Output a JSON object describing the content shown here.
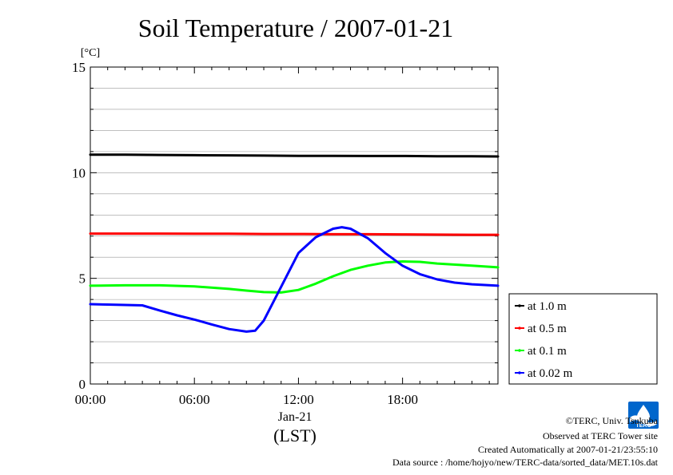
{
  "chart_data": {
    "type": "line",
    "title": "Soil Temperature / 2007-01-21",
    "ylabel": "[°C]",
    "xlabel": "(LST)",
    "date_label": "Jan-21",
    "x_unit": "hours (LST)",
    "xlim": [
      0,
      23.5
    ],
    "ylim": [
      0,
      15
    ],
    "x_ticks": [
      0,
      6,
      12,
      18
    ],
    "x_tick_labels": [
      "00:00",
      "06:00",
      "12:00",
      "18:00"
    ],
    "y_ticks": [
      0,
      5,
      10,
      15
    ],
    "y_tick_labels": [
      "0",
      "5",
      "10",
      "15"
    ],
    "grid": true,
    "legend_position": "right",
    "series": [
      {
        "name": "at 1.0 m",
        "color": "#000000",
        "x": [
          0,
          2,
          4,
          6,
          8,
          10,
          12,
          14,
          16,
          18,
          20,
          22,
          23.5
        ],
        "y": [
          10.85,
          10.85,
          10.84,
          10.83,
          10.82,
          10.81,
          10.8,
          10.8,
          10.79,
          10.79,
          10.78,
          10.78,
          10.77
        ]
      },
      {
        "name": "at 0.5 m",
        "color": "#ff0000",
        "x": [
          0,
          2,
          4,
          6,
          8,
          10,
          12,
          14,
          16,
          18,
          20,
          22,
          23.5
        ],
        "y": [
          7.12,
          7.12,
          7.12,
          7.11,
          7.11,
          7.1,
          7.1,
          7.09,
          7.09,
          7.08,
          7.07,
          7.06,
          7.06
        ]
      },
      {
        "name": "at 0.1 m",
        "color": "#00ff00",
        "x": [
          0,
          2,
          4,
          6,
          8,
          9,
          10,
          11,
          12,
          13,
          14,
          15,
          16,
          17,
          18,
          19,
          20,
          22,
          23.5
        ],
        "y": [
          4.65,
          4.67,
          4.67,
          4.62,
          4.5,
          4.42,
          4.35,
          4.33,
          4.45,
          4.75,
          5.1,
          5.4,
          5.6,
          5.75,
          5.8,
          5.78,
          5.7,
          5.6,
          5.52
        ]
      },
      {
        "name": "at 0.02 m",
        "color": "#0000ff",
        "x": [
          0,
          1,
          2,
          3,
          4,
          5,
          6,
          7,
          8,
          9,
          9.5,
          10,
          11,
          12,
          13,
          14,
          14.5,
          15,
          16,
          17,
          18,
          19,
          20,
          21,
          22,
          23.5
        ],
        "y": [
          3.78,
          3.76,
          3.74,
          3.72,
          3.48,
          3.25,
          3.05,
          2.82,
          2.6,
          2.48,
          2.52,
          3.0,
          4.6,
          6.2,
          6.95,
          7.35,
          7.42,
          7.35,
          6.9,
          6.2,
          5.6,
          5.2,
          4.95,
          4.8,
          4.72,
          4.65
        ]
      }
    ]
  },
  "footer": {
    "copyright": "©TERC, Univ. Tsukuba",
    "observed": "Observed at TERC Tower site",
    "created": "Created Automatically at 2007-01-21/23:55:10",
    "source": "Data source : /home/hojyo/new/TERC-data/sorted_data/MET.10s.dat",
    "logo_text": "TERC",
    "logo_color": "#0066cc"
  }
}
